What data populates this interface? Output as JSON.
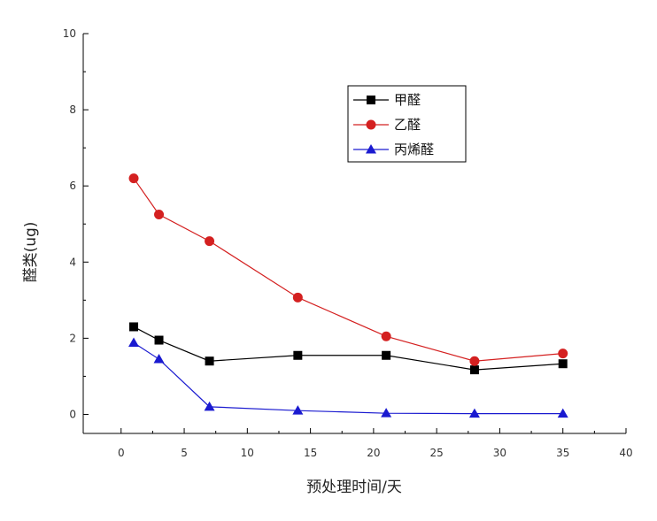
{
  "chart_data": {
    "type": "line",
    "title": "",
    "xlabel": "预处理时间/天",
    "ylabel": "醛类(ug)",
    "xlim": [
      -3,
      40
    ],
    "ylim": [
      -0.5,
      10
    ],
    "x_ticks": [
      "0",
      "5",
      "10",
      "15",
      "20",
      "25",
      "30",
      "35",
      "40"
    ],
    "y_ticks": [
      "0",
      "2",
      "4",
      "6",
      "8",
      "10"
    ],
    "legend_position": "top-right",
    "grid": false,
    "x": [
      1,
      3,
      7,
      14,
      21,
      28,
      35
    ],
    "series": [
      {
        "name": "甲醛",
        "color": "#000000",
        "marker": "square",
        "values": [
          2.3,
          1.95,
          1.4,
          1.55,
          1.55,
          1.17,
          1.33
        ]
      },
      {
        "name": "乙醛",
        "color": "#d42020",
        "marker": "circle",
        "values": [
          6.2,
          5.25,
          4.55,
          3.07,
          2.05,
          1.4,
          1.6
        ]
      },
      {
        "name": "丙烯醛",
        "color": "#1a1ad0",
        "marker": "triangle",
        "values": [
          1.88,
          1.45,
          0.2,
          0.1,
          0.03,
          0.02,
          0.02
        ]
      }
    ]
  }
}
